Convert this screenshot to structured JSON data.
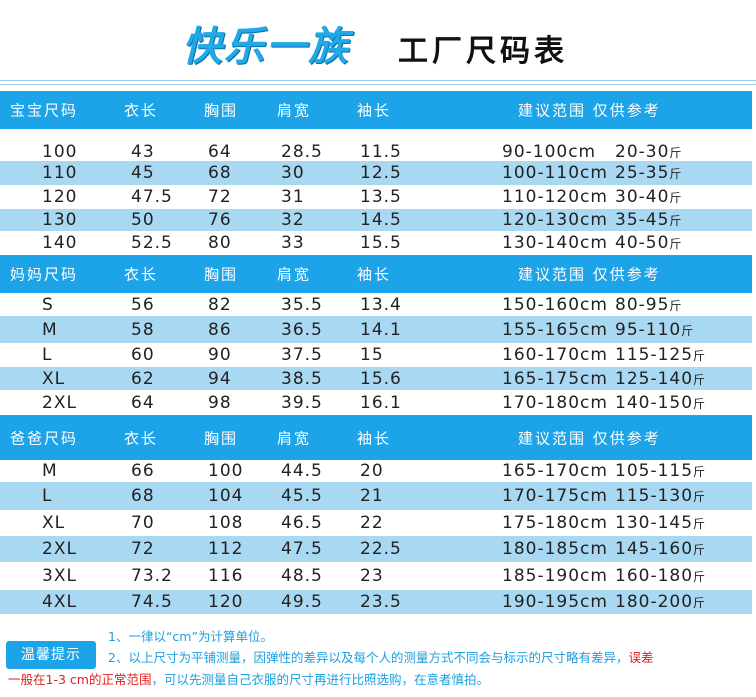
{
  "title": {
    "brand": "快乐一族",
    "subtitle": "工厂尺码表"
  },
  "headers": [
    {
      "label": "宝宝尺码"
    },
    {
      "label": "妈妈尺码"
    },
    {
      "label": "爸爸尺码"
    }
  ],
  "columns": [
    "衣长",
    "胸围",
    "肩宽",
    "袖长",
    "建议范围 仅供参考"
  ],
  "unit_jin": "斤",
  "baby": [
    [
      "100",
      "43",
      "64",
      "28.5",
      "11.5",
      "90-100cm",
      "20-30"
    ],
    [
      "110",
      "45",
      "68",
      "30",
      "12.5",
      "100-110cm",
      "25-35"
    ],
    [
      "120",
      "47.5",
      "72",
      "31",
      "13.5",
      "110-120cm",
      "30-40"
    ],
    [
      "130",
      "50",
      "76",
      "32",
      "14.5",
      "120-130cm",
      "35-45"
    ],
    [
      "140",
      "52.5",
      "80",
      "33",
      "15.5",
      "130-140cm",
      "40-50"
    ]
  ],
  "mom": [
    [
      "S",
      "56",
      "82",
      "35.5",
      "13.4",
      "150-160cm",
      "80-95"
    ],
    [
      "M",
      "58",
      "86",
      "36.5",
      "14.1",
      "155-165cm",
      "95-110"
    ],
    [
      "L",
      "60",
      "90",
      "37.5",
      "15",
      "160-170cm",
      "115-125"
    ],
    [
      "XL",
      "62",
      "94",
      "38.5",
      "15.6",
      "165-175cm",
      "125-140"
    ],
    [
      "2XL",
      "64",
      "98",
      "39.5",
      "16.1",
      "170-180cm",
      "140-150"
    ]
  ],
  "dad": [
    [
      "M",
      "66",
      "100",
      "44.5",
      "20",
      "165-170cm",
      "105-115"
    ],
    [
      "L",
      "68",
      "104",
      "45.5",
      "21",
      "170-175cm",
      "115-130"
    ],
    [
      "XL",
      "70",
      "108",
      "46.5",
      "22",
      "175-180cm",
      "130-145"
    ],
    [
      "2XL",
      "72",
      "112",
      "47.5",
      "22.5",
      "180-185cm",
      "145-160"
    ],
    [
      "3XL",
      "73.2",
      "116",
      "48.5",
      "23",
      "185-190cm",
      "160-180"
    ],
    [
      "4XL",
      "74.5",
      "120",
      "49.5",
      "23.5",
      "190-195cm",
      "180-200"
    ]
  ],
  "tips": {
    "label": "温馨提示",
    "line1": "1、一律以“cm”为计算单位。",
    "line2a": "2、以上尺寸为平铺测量，因弹性的差异以及每个人的测量方式不同会与标示的尺寸略有差异，",
    "line2b": "误差",
    "line3a": "一般在",
    "line3b": "1-3 cm",
    "line3c": "的正常范围",
    "line3d": "，可以先测量自己衣服的尺寸再进行比照选购，在意者慎拍。"
  },
  "colors": {
    "header_blue": "#1da4e8",
    "alt_row": "#a9d8f3",
    "brand": "#21a8e6",
    "warning": "#e02020"
  }
}
